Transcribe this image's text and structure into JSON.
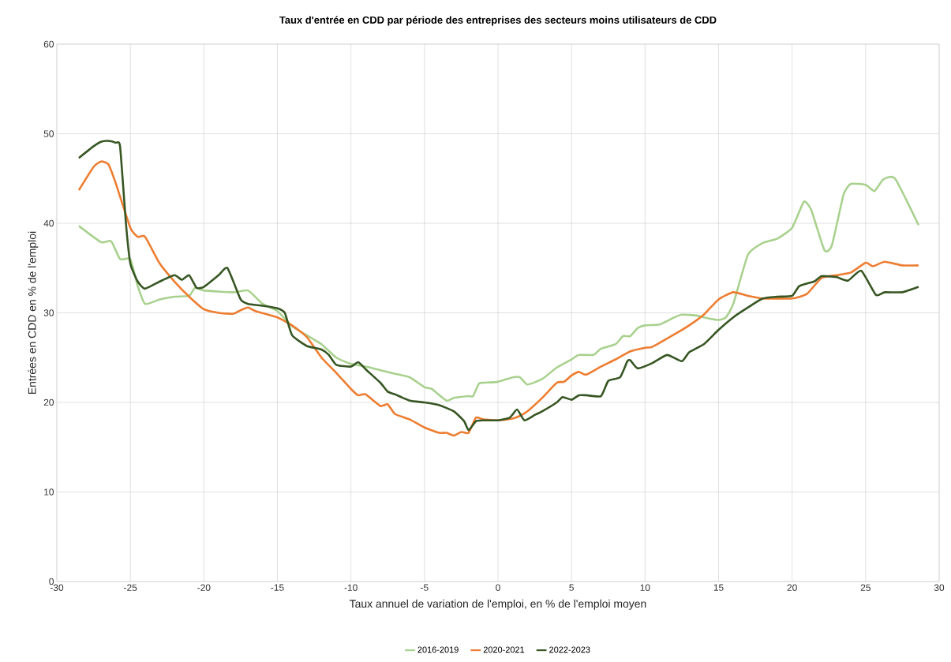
{
  "chart_data": {
    "type": "line",
    "title": "Taux d'entrée en CDD par période des entreprises des secteurs moins utilisateurs de CDD",
    "xlabel": "Taux annuel de variation de l'emploi, en % de l'emploi moyen",
    "ylabel": "Entrées en CDD en % de l'emploi",
    "xlim": [
      -30,
      30
    ],
    "xticks": [
      -30,
      -25,
      -20,
      -15,
      -10,
      -5,
      0,
      5,
      10,
      15,
      20,
      25,
      30
    ],
    "ylim": [
      0,
      60
    ],
    "yticks": [
      0,
      10,
      20,
      30,
      40,
      50,
      60
    ],
    "grid": true,
    "legend": "bottom",
    "marker": "none",
    "line_style": "solid",
    "series": [
      {
        "name": "2016-2019",
        "color": "#a9d18e",
        "x": [
          -28.5,
          -27,
          -26.3,
          -25.7,
          -25,
          -24.5,
          -24,
          -23,
          -22,
          -21,
          -20.6,
          -20,
          -18,
          -17,
          -16,
          -15,
          -14,
          -13,
          -12,
          -11,
          -10,
          -9,
          -8,
          -7,
          -6,
          -5,
          -4.5,
          -3.5,
          -3,
          -2,
          -1.7,
          -1.3,
          -1,
          0,
          1,
          1.5,
          2,
          3,
          4,
          5,
          5.5,
          6.5,
          7,
          8,
          8.5,
          9,
          9.5,
          10,
          11,
          12,
          12.5,
          13.5,
          14,
          15,
          15.5,
          16,
          17,
          18,
          19,
          20,
          20.8,
          21.3,
          22.2,
          22.7,
          23.5,
          24,
          25,
          25.6,
          26.2,
          27,
          28.6
        ],
        "values": [
          39.7,
          37.9,
          38,
          36,
          36,
          33,
          31,
          31.5,
          31.8,
          31.9,
          32.8,
          32.5,
          32.3,
          32.5,
          31,
          30.2,
          28.5,
          27.5,
          26.5,
          25,
          24.3,
          24,
          23.6,
          23.2,
          22.8,
          21.7,
          21.5,
          20.2,
          20.5,
          20.7,
          20.7,
          22.1,
          22.2,
          22.3,
          22.8,
          22.8,
          22,
          22.6,
          23.9,
          24.8,
          25.3,
          25.3,
          26,
          26.5,
          27.4,
          27.4,
          28.3,
          28.6,
          28.7,
          29.5,
          29.8,
          29.7,
          29.5,
          29.2,
          29.5,
          31,
          36.5,
          37.8,
          38.3,
          39.5,
          42.4,
          41.5,
          37,
          37.5,
          43.2,
          44.4,
          44.3,
          43.6,
          44.9,
          45,
          39.8
        ]
      },
      {
        "name": "2020-2021",
        "color": "#ed7d31",
        "x": [
          -28.5,
          -27.5,
          -27,
          -26.5,
          -26,
          -25,
          -24.5,
          -24,
          -23,
          -22,
          -21,
          -20,
          -19,
          -18,
          -17.5,
          -17,
          -16.5,
          -15,
          -14,
          -13,
          -12,
          -11,
          -10,
          -9.5,
          -9,
          -8,
          -7.5,
          -7,
          -6,
          -5,
          -4,
          -3.5,
          -3,
          -2.5,
          -2,
          -1.5,
          -1,
          0,
          1,
          1.5,
          2,
          3,
          4,
          4.5,
          5,
          5.5,
          6,
          7,
          8,
          9,
          10,
          10.5,
          12,
          13,
          14,
          15,
          16,
          17,
          18,
          19,
          20,
          21,
          22,
          23,
          24,
          25,
          25.5,
          26.3,
          27.5,
          28.6
        ],
        "values": [
          43.7,
          46.3,
          46.9,
          46.6,
          44.5,
          39.5,
          38.5,
          38.5,
          35.5,
          33.5,
          31.8,
          30.4,
          30,
          29.9,
          30.3,
          30.6,
          30.2,
          29.5,
          28.6,
          27.3,
          25,
          23.3,
          21.5,
          20.8,
          20.9,
          19.6,
          19.8,
          18.7,
          18.1,
          17.2,
          16.6,
          16.6,
          16.3,
          16.7,
          16.6,
          18.3,
          18.1,
          18,
          18.2,
          18.5,
          19,
          20.5,
          22.2,
          22.3,
          23,
          23.4,
          23.1,
          24,
          24.8,
          25.7,
          26.1,
          26.2,
          27.6,
          28.6,
          29.8,
          31.5,
          32.3,
          31.9,
          31.6,
          31.6,
          31.6,
          32.1,
          33.9,
          34.2,
          34.5,
          35.6,
          35.2,
          35.7,
          35.3,
          35.3
        ]
      },
      {
        "name": "2022-2023",
        "color": "#375623",
        "x": [
          -28.5,
          -27.5,
          -27,
          -26.5,
          -26,
          -25.7,
          -25.3,
          -25,
          -24.5,
          -24,
          -23,
          -22,
          -21.5,
          -21,
          -20.5,
          -20,
          -19,
          -18.4,
          -17.5,
          -17,
          -16,
          -15,
          -14.5,
          -14,
          -13,
          -12,
          -11.5,
          -11,
          -10,
          -9.5,
          -9,
          -8,
          -7.5,
          -7,
          -6,
          -5,
          -4,
          -3,
          -2.3,
          -2,
          -1.5,
          -1,
          0,
          0.8,
          1.3,
          1.8,
          2.5,
          3,
          4,
          4.4,
          5,
          5.5,
          6,
          7,
          7.5,
          8.3,
          8.8,
          9,
          9.5,
          10.5,
          11.5,
          12.5,
          13,
          14,
          15,
          16,
          17,
          18,
          19,
          20,
          20.5,
          21.5,
          22,
          23,
          23.8,
          24.7,
          25.7,
          26.3,
          27.5,
          28.6
        ],
        "values": [
          47.3,
          48.6,
          49.1,
          49.2,
          49,
          48.6,
          40,
          35.5,
          33.5,
          32.7,
          33.5,
          34.2,
          33.7,
          34.2,
          32.8,
          32.9,
          34.2,
          35,
          31.5,
          31,
          30.8,
          30.5,
          30,
          27.5,
          26.3,
          25.9,
          25.3,
          24.2,
          24,
          24.5,
          23.7,
          22.2,
          21.2,
          20.9,
          20.2,
          20,
          19.7,
          19,
          17.9,
          16.9,
          17.9,
          18,
          18,
          18.3,
          19.2,
          18,
          18.6,
          19,
          20,
          20.6,
          20.3,
          20.8,
          20.8,
          20.7,
          22.4,
          22.8,
          24.6,
          24.7,
          23.8,
          24.4,
          25.3,
          24.6,
          25.6,
          26.5,
          28.1,
          29.5,
          30.6,
          31.6,
          31.8,
          31.9,
          33,
          33.5,
          34.1,
          34,
          33.6,
          34.7,
          32,
          32.3,
          32.3,
          32.9
        ]
      }
    ]
  }
}
